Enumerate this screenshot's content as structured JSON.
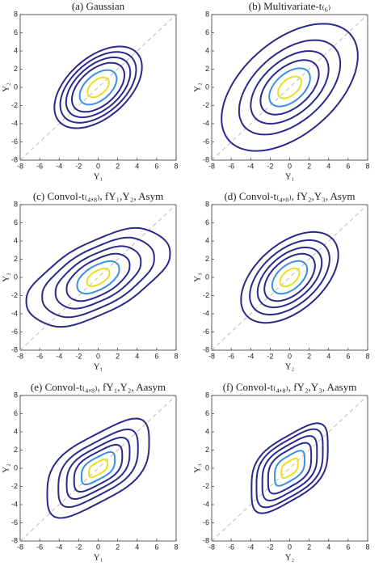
{
  "chart_data": [
    {
      "type": "contour",
      "title": "(a) Gaussian",
      "xlabel": "Y₁",
      "ylabel": "Y₂",
      "xlim": [
        -8,
        8
      ],
      "ylim": [
        -8,
        8
      ],
      "xticks": [
        -8,
        -6,
        -4,
        -2,
        0,
        2,
        4,
        6,
        8
      ],
      "yticks": [
        -8,
        -6,
        -4,
        -2,
        0,
        2,
        4,
        6,
        8
      ]
    },
    {
      "type": "contour",
      "title": "(b) Multivariate-t₍₆₎",
      "xlabel": "Y₁",
      "ylabel": "Y₂",
      "xlim": [
        -8,
        8
      ],
      "ylim": [
        -8,
        8
      ],
      "xticks": [
        -8,
        -6,
        -4,
        -2,
        0,
        2,
        4,
        6,
        8
      ],
      "yticks": [
        -8,
        -6,
        -4,
        -2,
        0,
        2,
        4,
        6,
        8
      ]
    },
    {
      "type": "contour",
      "title": "(c) Convol-t₍₄,₈₎, fY₁,Y₂, Asym",
      "xlabel": "Y₁",
      "ylabel": "Y₂",
      "xlim": [
        -8,
        8
      ],
      "ylim": [
        -8,
        8
      ],
      "xticks": [
        -8,
        -6,
        -4,
        -2,
        0,
        2,
        4,
        6,
        8
      ],
      "yticks": [
        -8,
        -6,
        -4,
        -2,
        0,
        2,
        4,
        6,
        8
      ]
    },
    {
      "type": "contour",
      "title": "(d) Convol-t₍₄,₈₎, fY₂,Y₃, Asym",
      "xlabel": "Y₂",
      "ylabel": "Y₃",
      "xlim": [
        -8,
        8
      ],
      "ylim": [
        -8,
        8
      ],
      "xticks": [
        -8,
        -6,
        -4,
        -2,
        0,
        2,
        4,
        6,
        8
      ],
      "yticks": [
        -8,
        -6,
        -4,
        -2,
        0,
        2,
        4,
        6,
        8
      ]
    },
    {
      "type": "contour",
      "title": "(e) Convol-t₍₄,₈₎, fY₁,Y₂, Aasym",
      "xlabel": "Y₁",
      "ylabel": "Y₂",
      "xlim": [
        -8,
        8
      ],
      "ylim": [
        -8,
        8
      ],
      "xticks": [
        -8,
        -6,
        -4,
        -2,
        0,
        2,
        4,
        6,
        8
      ],
      "yticks": [
        -8,
        -6,
        -4,
        -2,
        0,
        2,
        4,
        6,
        8
      ]
    },
    {
      "type": "contour",
      "title": "(f) Convol-t₍₄,₈₎, fY₂,Y₃, Aasym",
      "xlabel": "Y₂",
      "ylabel": "Y₃",
      "xlim": [
        -8,
        8
      ],
      "ylim": [
        -8,
        8
      ],
      "xticks": [
        -8,
        -6,
        -4,
        -2,
        0,
        2,
        4,
        6,
        8
      ],
      "yticks": [
        -8,
        -6,
        -4,
        -2,
        0,
        2,
        4,
        6,
        8
      ]
    }
  ]
}
